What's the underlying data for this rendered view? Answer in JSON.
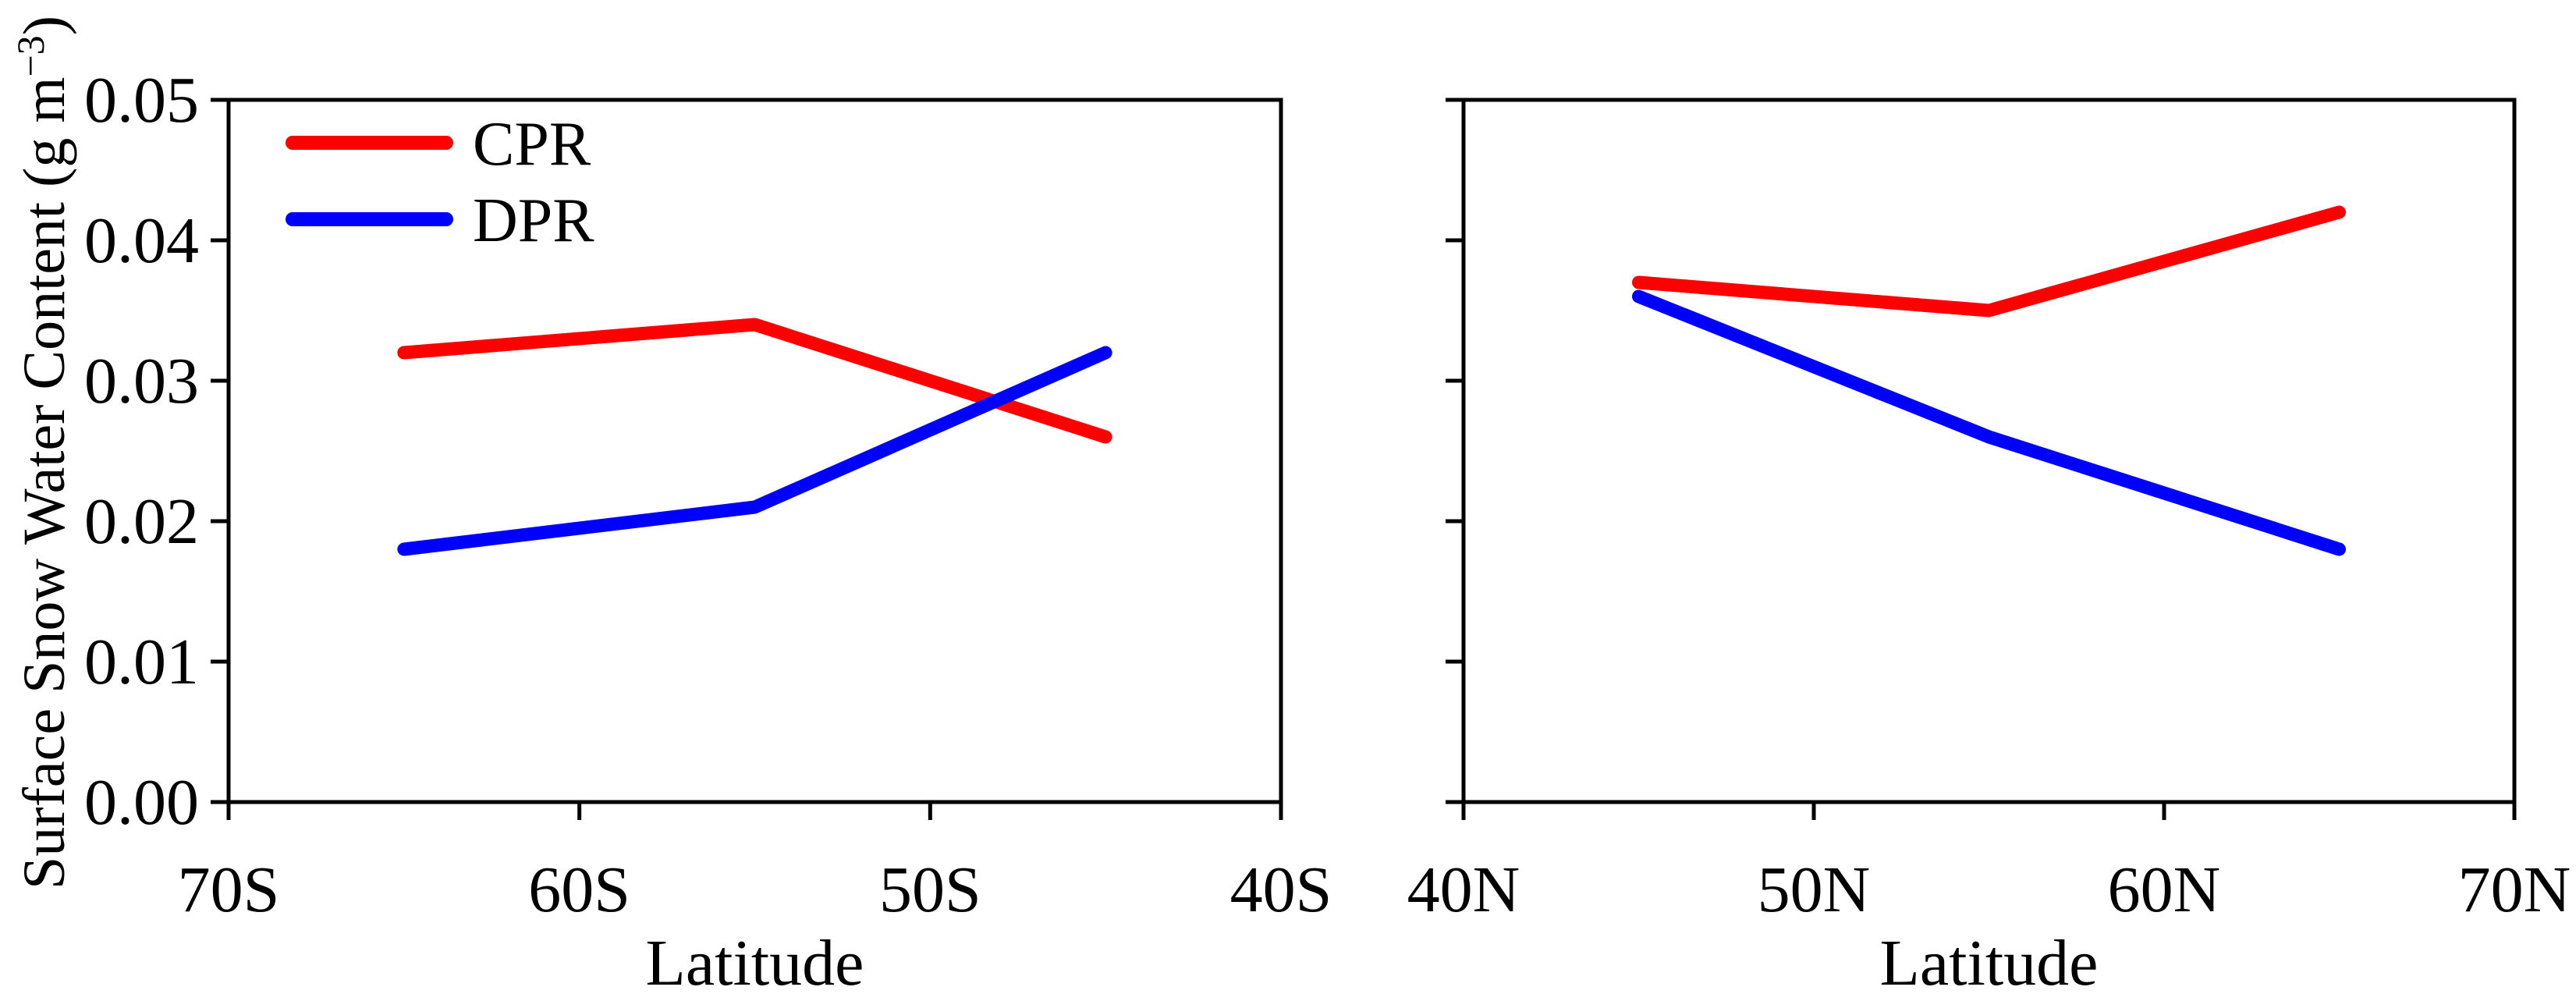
{
  "chart_data": {
    "type": "line",
    "title": "",
    "ylabel": "Surface Snow Water Content (g m⁻³)",
    "ylabel_parts": {
      "main": "Surface Snow Water Content (g m",
      "sup": "−3",
      "close": ")"
    },
    "xlabel": "Latitude",
    "ylim": [
      0.0,
      0.05
    ],
    "y_ticks": [
      0.0,
      0.01,
      0.02,
      0.03,
      0.04,
      0.05
    ],
    "y_tick_labels": [
      "0.00",
      "0.01",
      "0.02",
      "0.03",
      "0.04",
      "0.05"
    ],
    "grid": false,
    "axis_color": "#000000",
    "legend_position": "upper left",
    "legend": [
      {
        "name": "CPR",
        "color": "#ff0000"
      },
      {
        "name": "DPR",
        "color": "#0000ff"
      }
    ],
    "panels": [
      {
        "name": "southern-hemisphere",
        "xlabel": "Latitude",
        "x_left": 70,
        "x_right": 40,
        "x_ticks": [
          70,
          60,
          50,
          40
        ],
        "x_tick_labels": [
          "70S",
          "60S",
          "50S",
          "40S"
        ],
        "series": [
          {
            "name": "CPR",
            "color": "#ff0000",
            "x": [
              65,
              55,
              45
            ],
            "y": [
              0.032,
              0.034,
              0.026
            ]
          },
          {
            "name": "DPR",
            "color": "#0000ff",
            "x": [
              65,
              55,
              45
            ],
            "y": [
              0.018,
              0.021,
              0.032
            ]
          }
        ]
      },
      {
        "name": "northern-hemisphere",
        "xlabel": "Latitude",
        "x_left": 40,
        "x_right": 70,
        "x_ticks": [
          40,
          50,
          60,
          70
        ],
        "x_tick_labels": [
          "40N",
          "50N",
          "60N",
          "70N"
        ],
        "series": [
          {
            "name": "CPR",
            "color": "#ff0000",
            "x": [
              45,
              55,
              65
            ],
            "y": [
              0.037,
              0.035,
              0.042
            ]
          },
          {
            "name": "DPR",
            "color": "#0000ff",
            "x": [
              45,
              55,
              65
            ],
            "y": [
              0.036,
              0.026,
              0.018
            ]
          }
        ]
      }
    ]
  }
}
